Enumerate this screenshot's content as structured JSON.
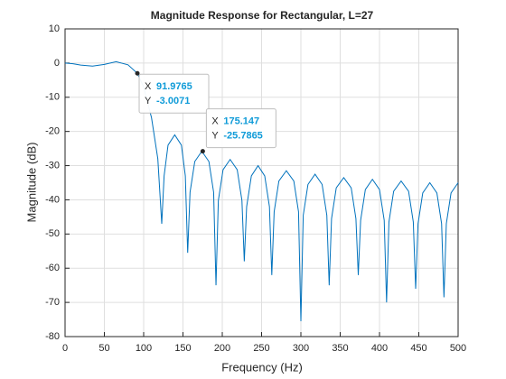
{
  "chart_data": {
    "type": "line",
    "title": "Magnitude Response for Rectangular, L=27",
    "x_label": "Frequency (Hz)",
    "y_label": "Magnitude (dB)",
    "xlim": [
      0,
      500
    ],
    "ylim": [
      -80,
      10
    ],
    "xticks": [
      0,
      50,
      100,
      150,
      200,
      250,
      300,
      350,
      400,
      450,
      500
    ],
    "yticks": [
      -80,
      -70,
      -60,
      -50,
      -40,
      -30,
      -20,
      -10,
      0,
      10
    ],
    "grid": true,
    "series": [
      {
        "color": "#0072bd",
        "x": [
          0,
          10,
          20,
          35,
          50,
          65,
          80,
          92,
          100,
          110,
          118,
          123,
          126,
          131,
          139.5,
          148,
          153,
          156,
          159,
          165,
          174,
          183,
          189,
          192,
          195,
          201,
          210,
          219,
          225,
          228,
          231,
          237,
          245.5,
          254,
          260,
          263,
          266,
          272,
          281.5,
          291,
          297,
          300,
          303,
          309,
          318,
          327,
          333,
          336,
          339,
          345,
          354.5,
          364,
          370,
          373,
          376,
          382,
          391,
          400,
          406,
          409,
          412,
          418,
          427.5,
          437,
          443,
          446,
          449,
          455,
          464,
          473,
          479,
          482,
          485,
          491,
          500
        ],
        "values": [
          0,
          -0.2,
          -0.6,
          -0.9,
          -0.4,
          0.4,
          -0.5,
          -3.0,
          -7,
          -16,
          -28,
          -47,
          -33,
          -24,
          -21,
          -24,
          -33,
          -55.5,
          -37.8,
          -28.8,
          -25.8,
          -28.8,
          -37.8,
          -65,
          -40.2,
          -31.2,
          -28.2,
          -31.2,
          -40.2,
          -58,
          -42,
          -33,
          -30,
          -33,
          -42,
          -62,
          -43.5,
          -34.5,
          -31.5,
          -34.5,
          -43.5,
          -75.5,
          -44.5,
          -35.5,
          -32.5,
          -35.5,
          -44.5,
          -65,
          -45.5,
          -36.5,
          -33.5,
          -36.5,
          -45.5,
          -62,
          -46,
          -37,
          -34,
          -37,
          -46,
          -70,
          -46.5,
          -37.5,
          -34.5,
          -37.5,
          -46.5,
          -66,
          -47,
          -38,
          -35,
          -38,
          -47,
          -68.5,
          -47,
          -38,
          -35
        ]
      }
    ],
    "datatips": [
      {
        "x_name": "X",
        "x": 91.9765,
        "y_name": "Y",
        "y": -3.0071
      },
      {
        "x_name": "X",
        "x": 175.147,
        "y_name": "Y",
        "y": -25.7865
      }
    ]
  }
}
